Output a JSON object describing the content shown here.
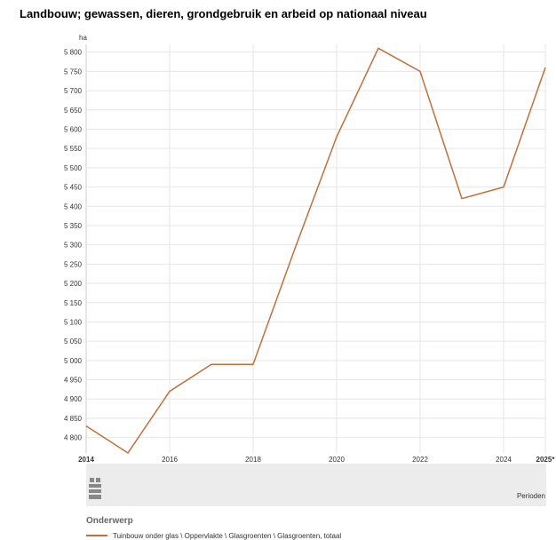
{
  "title": "Landbouw; gewassen, dieren, grondgebruik en arbeid op nationaal niveau",
  "colors": {
    "series": "#c0703a",
    "grid": "#e6e6e6",
    "footer_band": "#ececec"
  },
  "footer": {
    "periods_label": "Perioden",
    "logo_icon": "cbs-logo-icon"
  },
  "legend": {
    "title": "Onderwerp",
    "items": [
      {
        "label": "Tuinbouw onder glas \\ Oppervlakte \\ Glasgroenten \\ Glasgroenten, totaal"
      }
    ]
  },
  "chart_data": {
    "type": "line",
    "title": "Landbouw; gewassen, dieren, grondgebruik en arbeid op nationaal niveau",
    "ylabel": "ha",
    "xlabel": "Perioden",
    "x": [
      "2014",
      "2015",
      "2016",
      "2017",
      "2018",
      "2019",
      "2020",
      "2021",
      "2022",
      "2023",
      "2024",
      "2025*"
    ],
    "x_tick_labels": [
      "2014",
      "2016",
      "2018",
      "2020",
      "2022",
      "2024",
      "2025*"
    ],
    "x_tick_bold": [
      "2014",
      "2025*"
    ],
    "series": [
      {
        "name": "Tuinbouw onder glas \\ Oppervlakte \\ Glasgroenten \\ Glasgroenten, totaal",
        "values": [
          4830,
          4760,
          4920,
          4990,
          4990,
          5290,
          5580,
          5810,
          5750,
          5420,
          5450,
          5760
        ]
      }
    ],
    "y_ticks": [
      4800,
      4850,
      4900,
      4950,
      5000,
      5050,
      5100,
      5150,
      5200,
      5250,
      5300,
      5350,
      5400,
      5450,
      5500,
      5550,
      5600,
      5650,
      5700,
      5750,
      5800
    ],
    "y_tick_labels": [
      "4 800",
      "4 850",
      "4 900",
      "4 950",
      "5 000",
      "5 050",
      "5 100",
      "5 150",
      "5 200",
      "5 250",
      "5 300",
      "5 350",
      "5 400",
      "5 450",
      "5 500",
      "5 550",
      "5 600",
      "5 650",
      "5 700",
      "5 750",
      "5 800"
    ],
    "ylim": [
      4760,
      5820
    ],
    "grid": true,
    "legend_position": "bottom-left"
  }
}
